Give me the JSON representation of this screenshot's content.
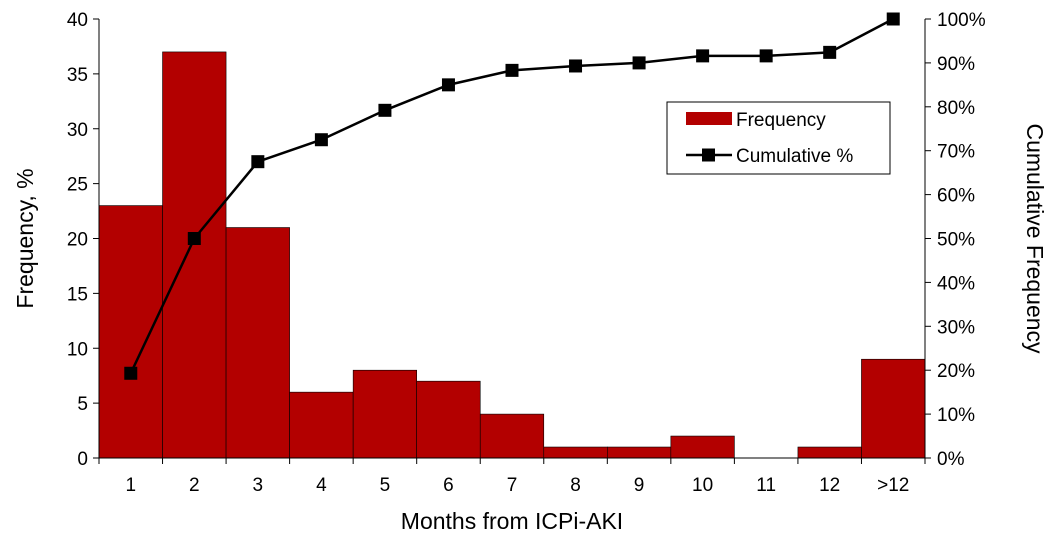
{
  "chart_data": {
    "type": "bar",
    "categories": [
      "1",
      "2",
      "3",
      "4",
      "5",
      "6",
      "7",
      "8",
      "9",
      "10",
      "11",
      "12",
      ">12"
    ],
    "series": [
      {
        "name": "Frequency",
        "type": "bar",
        "axis": "left",
        "color": "#b30000",
        "values": [
          23,
          37,
          21,
          6,
          8,
          7,
          4,
          1,
          1,
          2,
          0,
          1,
          9
        ]
      },
      {
        "name": "Cumulative %",
        "type": "line",
        "axis": "right",
        "color": "#000000",
        "marker": "square",
        "values": [
          19.3,
          50,
          67.5,
          72.5,
          79.2,
          85,
          88.3,
          89.3,
          90,
          91.6,
          91.6,
          92.4,
          100
        ]
      }
    ],
    "xlabel": "Months from ICPi-AKI",
    "ylabel": "Frequency, %",
    "y2label": "Cumulative Frequency",
    "ylim": [
      0,
      40
    ],
    "y2lim": [
      0,
      100
    ],
    "yticks": [
      "0",
      "5",
      "10",
      "15",
      "20",
      "25",
      "30",
      "35",
      "40"
    ],
    "y2ticks": [
      "0%",
      "10%",
      "20%",
      "30%",
      "40%",
      "50%",
      "60%",
      "70%",
      "80%",
      "90%",
      "100%"
    ],
    "grid": false,
    "legend": {
      "position": "top-right",
      "entries": [
        "Frequency",
        "Cumulative %"
      ]
    }
  }
}
